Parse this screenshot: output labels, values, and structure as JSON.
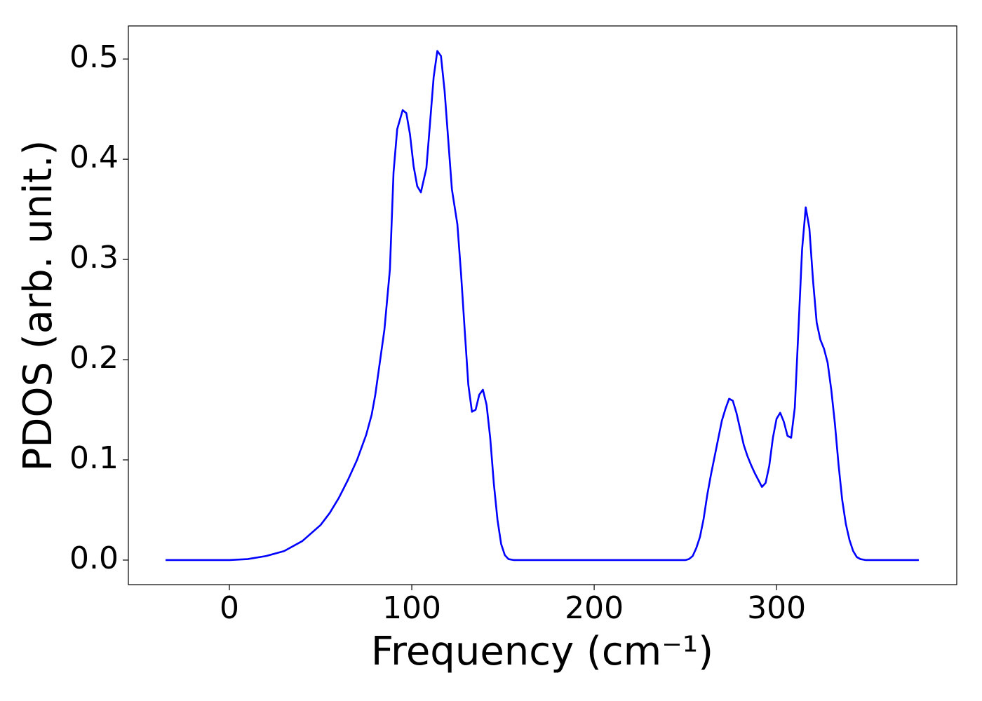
{
  "chart_data": {
    "type": "line",
    "xlabel": "Frequency (cm⁻¹)",
    "ylabel": "PDOS (arb. unit.)",
    "x": [
      -35,
      0,
      10,
      20,
      30,
      40,
      50,
      55,
      60,
      65,
      70,
      75,
      78,
      80,
      85,
      88,
      90,
      92,
      95,
      97,
      99,
      101,
      103,
      105,
      108,
      110,
      112,
      114,
      116,
      118,
      120,
      122,
      125,
      127,
      129,
      131,
      133,
      135,
      137,
      139,
      141,
      143,
      145,
      147,
      149,
      151,
      153,
      156,
      250,
      252,
      254,
      256,
      258,
      260,
      262,
      264,
      266,
      268,
      270,
      272,
      274,
      276,
      278,
      280,
      282,
      284,
      286,
      288,
      290,
      292,
      294,
      296,
      298,
      300,
      302,
      304,
      306,
      308,
      310,
      312,
      314,
      316,
      318,
      320,
      322,
      324,
      326,
      328,
      330,
      332,
      334,
      336,
      338,
      340,
      342,
      344,
      346,
      349,
      378
    ],
    "series": [
      {
        "name": "PDOS",
        "color": "#0000ff",
        "values": [
          0,
          0,
          0.001,
          0.004,
          0.009,
          0.019,
          0.035,
          0.047,
          0.062,
          0.08,
          0.1,
          0.125,
          0.145,
          0.165,
          0.23,
          0.29,
          0.387,
          0.43,
          0.449,
          0.446,
          0.425,
          0.393,
          0.373,
          0.367,
          0.391,
          0.436,
          0.482,
          0.508,
          0.503,
          0.468,
          0.419,
          0.37,
          0.335,
          0.286,
          0.23,
          0.175,
          0.148,
          0.15,
          0.165,
          0.17,
          0.155,
          0.122,
          0.076,
          0.04,
          0.016,
          0.005,
          0.001,
          0,
          0,
          0.001,
          0.004,
          0.012,
          0.023,
          0.041,
          0.065,
          0.085,
          0.103,
          0.121,
          0.139,
          0.151,
          0.161,
          0.159,
          0.147,
          0.131,
          0.115,
          0.104,
          0.095,
          0.087,
          0.08,
          0.073,
          0.077,
          0.094,
          0.122,
          0.141,
          0.147,
          0.138,
          0.124,
          0.122,
          0.152,
          0.23,
          0.31,
          0.352,
          0.331,
          0.279,
          0.237,
          0.22,
          0.211,
          0.197,
          0.17,
          0.136,
          0.095,
          0.06,
          0.036,
          0.02,
          0.009,
          0.003,
          0.001,
          0,
          0
        ]
      }
    ],
    "xlim": [
      -55.4,
      398.8
    ],
    "ylim": [
      -0.0245,
      0.533
    ],
    "xticks": [
      0,
      100,
      200,
      300
    ],
    "yticks": [
      {
        "value": 0,
        "label": "0.0"
      },
      0.1,
      0.2,
      0.3,
      0.4,
      0.5
    ],
    "grid": false
  }
}
